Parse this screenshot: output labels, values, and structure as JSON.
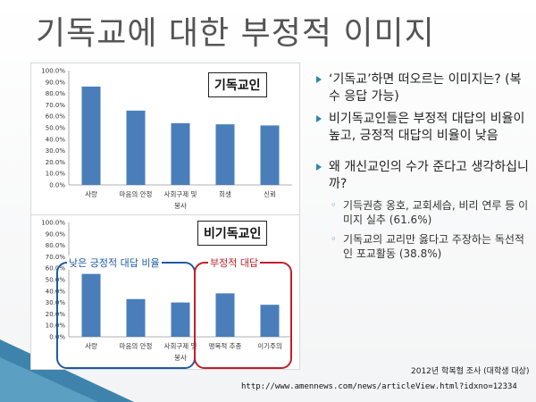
{
  "slide": {
    "title": "기독교에 대한 부정적 이미지"
  },
  "chart_data": [
    {
      "type": "bar",
      "tag": "기독교인",
      "categories": [
        "사랑",
        "마음의 안정",
        "사회구제 및\n봉사",
        "희생",
        "신뢰"
      ],
      "values": [
        86,
        65,
        54,
        53,
        52
      ],
      "ylim": [
        0,
        100
      ],
      "yticks": [
        "0.0%",
        "10.0%",
        "20.0%",
        "30.0%",
        "40.0%",
        "50.0%",
        "60.0%",
        "70.0%",
        "80.0%",
        "90.0%",
        "100.0%"
      ],
      "bar_color": "#4a7ebb"
    },
    {
      "type": "bar",
      "tag": "비기독교인",
      "categories": [
        "사랑",
        "마음의 안정",
        "사회구제 및\n봉사",
        "맹목적 추종",
        "이기주의"
      ],
      "values": [
        55,
        33,
        30,
        38,
        28
      ],
      "ylim": [
        0,
        100
      ],
      "yticks": [
        "0.0%",
        "10.0%",
        "20.0%",
        "30.0%",
        "40.0%",
        "50.0%",
        "60.0%",
        "70.0%",
        "80.0%",
        "90.0%",
        "100.0%"
      ],
      "bar_color": "#4a7ebb",
      "groups": [
        {
          "label": "낮은 긍정적 대답 비율",
          "color": "#1f5aa6"
        },
        {
          "label": "부정적 대답",
          "color": "#c0202a"
        }
      ]
    }
  ],
  "bullets": [
    {
      "text": "‘기독교’하면 떠오르는 이미지는? (복수 응답 가능)",
      "subs": []
    },
    {
      "text": "비기독교인들은 부정적 대답의 비율이 높고, 긍정적 대답의 비율이 낮음",
      "subs": []
    },
    {
      "text": "왜 개신교인의 수가 준다고 생각하십니까?",
      "subs": [
        "기득권층 옹호, 교회세습, 비리 연루 등 이미지 실추 (61.6%)",
        "기독교의 교리만 옳다고 주장하는 독선적인 포교활동 (38.8%)"
      ]
    }
  ],
  "footer": {
    "source_year": "2012",
    "source_rest": "년 학복협 조사 (대학생 대상)",
    "url": "http://www.amennews.com/news/articleView.html?idxno=12334"
  },
  "colors": {
    "accent": "#2e86ab",
    "wedge": "#1d6f9e"
  }
}
